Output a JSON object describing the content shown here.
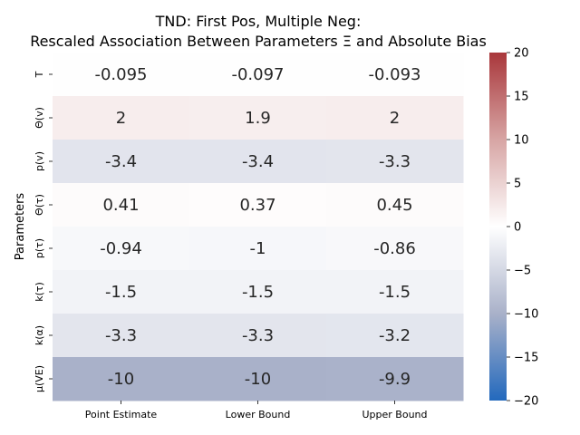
{
  "chart_data": {
    "type": "heatmap",
    "title_line1": "TND: First Pos, Multiple Neg:",
    "title_line2": "Rescaled Association Between Parameters Ξ and Absolute Bias",
    "ylabel": "Parameters",
    "xlabel": "",
    "columns": [
      "Point Estimate",
      "Lower Bound",
      "Upper Bound"
    ],
    "rows": [
      "T",
      "Θ(v)",
      "p(v)",
      "Θ(τ)",
      "p(τ)",
      "k(τ)",
      "k(α)",
      "μ(VE)"
    ],
    "values": [
      [
        -0.095,
        -0.097,
        -0.093
      ],
      [
        2,
        1.9,
        2
      ],
      [
        -3.4,
        -3.4,
        -3.3
      ],
      [
        0.41,
        0.37,
        0.45
      ],
      [
        -0.94,
        -1,
        -0.86
      ],
      [
        -1.5,
        -1.5,
        -1.5
      ],
      [
        -3.3,
        -3.3,
        -3.2
      ],
      [
        -10,
        -10,
        -9.9
      ]
    ],
    "labels": [
      [
        "-0.095",
        "-0.097",
        "-0.093"
      ],
      [
        "2",
        "1.9",
        "2"
      ],
      [
        "-3.4",
        "-3.4",
        "-3.3"
      ],
      [
        "0.41",
        "0.37",
        "0.45"
      ],
      [
        "-0.94",
        "-1",
        "-0.86"
      ],
      [
        "-1.5",
        "-1.5",
        "-1.5"
      ],
      [
        "-3.3",
        "-3.3",
        "-3.2"
      ],
      [
        "-10",
        "-10",
        "-9.9"
      ]
    ],
    "colorbar": {
      "min": -20,
      "max": 20,
      "ticks": [
        20,
        15,
        10,
        5,
        0,
        -5,
        -10,
        -15,
        -20
      ],
      "tick_labels": [
        "20",
        "15",
        "10",
        "5",
        "0",
        "−5",
        "−10",
        "−15",
        "−20"
      ],
      "colormap": "vlag",
      "colors": [
        "#2369bd",
        "#a9b1c9",
        "#ffffff",
        "#d7a5a4",
        "#a9373b"
      ]
    }
  }
}
